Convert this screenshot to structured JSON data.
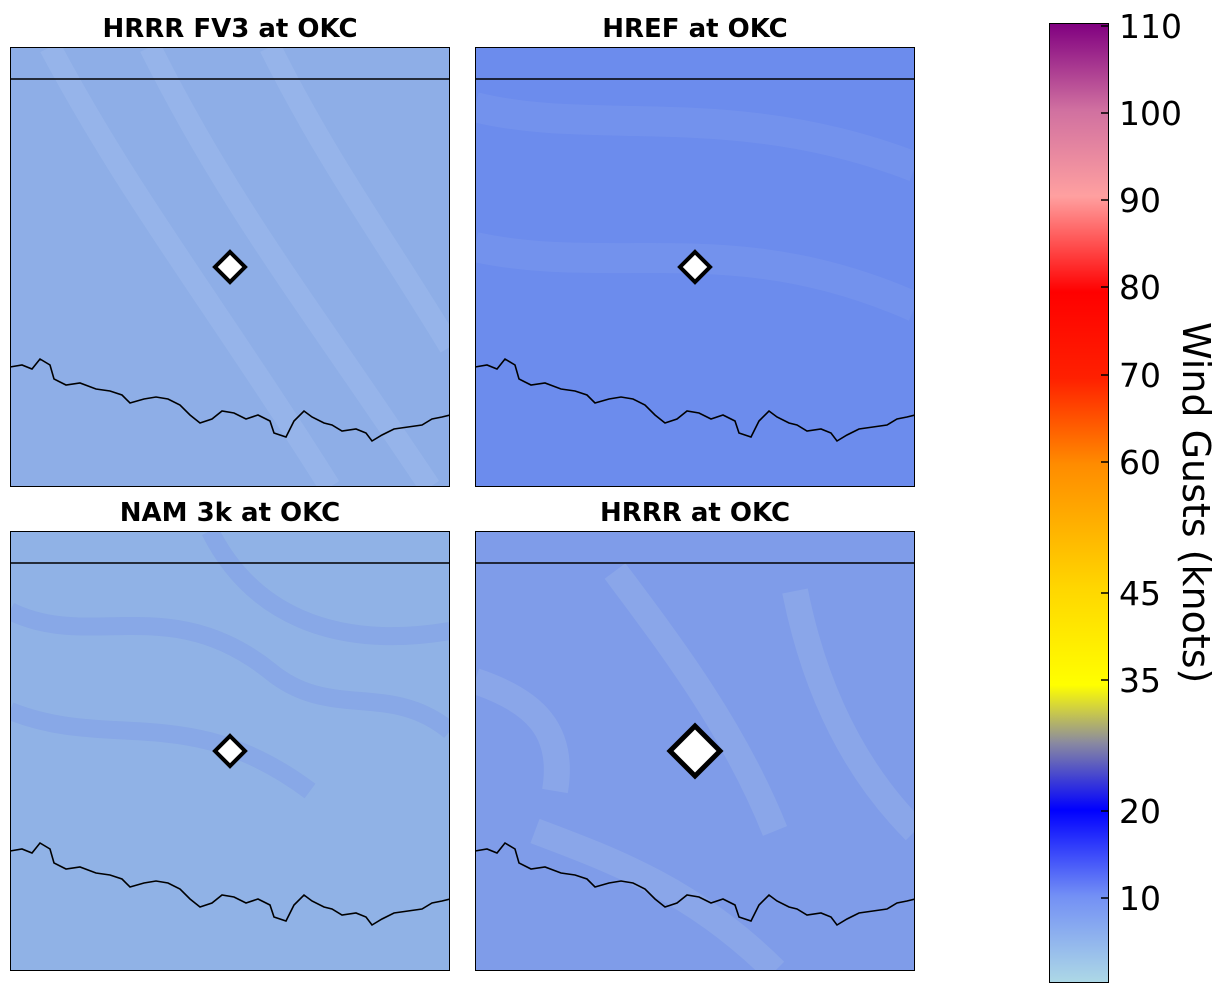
{
  "panels": [
    {
      "title": "HRRR FV3 at OKC",
      "base_color": "#8eaee7",
      "marker": "small"
    },
    {
      "title": "HREF at OKC",
      "base_color": "#6c8ced",
      "marker": "small"
    },
    {
      "title": "NAM 3k at OKC",
      "base_color": "#90b2e6",
      "marker": "small"
    },
    {
      "title": "HRRR at OKC",
      "base_color": "#7f9ce9",
      "marker": "large"
    }
  ],
  "colorbar": {
    "title": "Wind Gusts (knots)",
    "ticks": [
      "110",
      "100",
      "90",
      "80",
      "70",
      "60",
      "45",
      "35",
      "20",
      "10"
    ],
    "colors": {
      "low": "#add8e6",
      "c10": "#7390f5",
      "c20": "#0000ff",
      "c28": "#8a8aa0",
      "c35": "#ffff00",
      "c45": "#ffd700",
      "c60": "#ff8c00",
      "c70": "#ff2000",
      "c80": "#ff0000",
      "c90": "#ffa0a0",
      "c100": "#d070a0",
      "c110": "#800080"
    }
  }
}
